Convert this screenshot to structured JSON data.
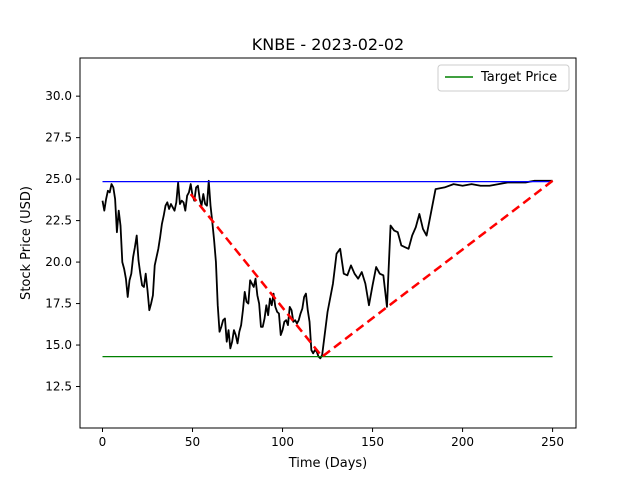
{
  "chart_data": {
    "type": "line",
    "title": "KNBE - 2023-02-02",
    "xlabel": "Time (Days)",
    "ylabel": "Stock Price (USD)",
    "xlim": [
      -12.5,
      263
    ],
    "ylim": [
      10.0,
      32.3
    ],
    "xticks": [
      0,
      50,
      100,
      150,
      200,
      250
    ],
    "yticks": [
      12.5,
      15.0,
      17.5,
      20.0,
      22.5,
      25.0,
      27.5,
      30.0
    ],
    "ytick_labels": [
      "12.5",
      "15.0",
      "17.5",
      "20.0",
      "22.5",
      "25.0",
      "27.5",
      "30.0"
    ],
    "grid": false,
    "legend": {
      "position": "top-right",
      "entries": [
        {
          "label": "Target Price",
          "color": "#008000"
        }
      ]
    },
    "series": [
      {
        "kind": "price",
        "color": "#000000",
        "x": [
          0,
          1,
          2,
          3,
          4,
          5,
          6,
          7,
          8,
          9,
          10,
          11,
          12,
          13,
          14,
          15,
          16,
          17,
          18,
          19,
          20,
          21,
          22,
          23,
          24,
          25,
          26,
          27,
          28,
          29,
          30,
          31,
          32,
          33,
          34,
          35,
          36,
          37,
          38,
          39,
          40,
          41,
          42,
          43,
          44,
          45,
          46,
          47,
          48,
          49,
          50,
          51,
          52,
          53,
          54,
          55,
          56,
          57,
          58,
          59,
          60,
          61,
          62,
          63,
          64,
          65,
          66,
          67,
          68,
          69,
          70,
          71,
          72,
          73,
          74,
          75,
          76,
          77,
          78,
          79,
          80,
          81,
          82,
          83,
          84,
          85,
          86,
          87,
          88,
          89,
          90,
          91,
          92,
          93,
          94,
          95,
          96,
          97,
          98,
          99,
          100,
          101,
          102,
          103,
          104,
          105,
          106,
          107,
          108,
          109,
          110,
          111,
          112,
          113,
          114,
          115,
          116,
          117,
          118,
          119,
          120,
          121,
          122,
          125,
          128,
          130,
          132,
          134,
          136,
          138,
          140,
          142,
          144,
          146,
          148,
          150,
          152,
          154,
          156,
          158,
          160,
          162,
          164,
          166,
          168,
          170,
          172,
          174,
          176,
          178,
          180,
          185,
          190,
          195,
          200,
          205,
          210,
          215,
          220,
          225,
          230,
          235,
          240,
          245,
          250
        ],
        "y": [
          23.7,
          23.1,
          23.8,
          24.3,
          24.2,
          24.7,
          24.5,
          23.8,
          21.8,
          23.1,
          22.2,
          20.0,
          19.6,
          19.0,
          17.9,
          18.9,
          19.3,
          20.3,
          20.9,
          21.6,
          20.1,
          19.3,
          18.6,
          18.5,
          19.3,
          18.3,
          17.1,
          17.5,
          18.0,
          19.8,
          20.3,
          20.8,
          21.5,
          22.3,
          22.8,
          23.4,
          23.6,
          23.2,
          23.5,
          23.3,
          23.1,
          23.6,
          24.8,
          23.5,
          23.7,
          23.6,
          23.1,
          24.0,
          24.2,
          24.7,
          24.0,
          23.7,
          24.5,
          24.6,
          23.8,
          23.4,
          24.1,
          23.5,
          23.4,
          24.9,
          23.4,
          22.4,
          21.3,
          20.0,
          17.4,
          15.8,
          16.1,
          16.5,
          16.6,
          15.2,
          15.9,
          14.8,
          15.2,
          15.9,
          15.6,
          15.1,
          15.8,
          16.2,
          17.1,
          18.2,
          17.6,
          17.5,
          18.9,
          18.7,
          18.5,
          19.0,
          18.0,
          17.5,
          16.1,
          16.1,
          16.6,
          17.4,
          16.8,
          17.8,
          17.4,
          18.1,
          17.3,
          17.0,
          16.9,
          15.6,
          15.9,
          16.4,
          16.5,
          16.2,
          17.3,
          17.1,
          16.4,
          16.5,
          16.3,
          16.5,
          16.9,
          17.2,
          17.9,
          18.1,
          17.1,
          16.4,
          14.7,
          14.5,
          14.7,
          14.6,
          14.3,
          14.2,
          14.4,
          17.0,
          18.7,
          20.5,
          20.8,
          19.3,
          19.2,
          19.8,
          19.3,
          19.0,
          19.4,
          18.7,
          17.4,
          18.6,
          19.7,
          19.3,
          19.2,
          17.3,
          22.2,
          21.9,
          21.8,
          21.0,
          20.9,
          20.8,
          21.6,
          22.1,
          22.9,
          22.0,
          21.6,
          24.4,
          24.5,
          24.7,
          24.6,
          24.7,
          24.6,
          24.6,
          24.7,
          24.8,
          24.8,
          24.8,
          24.9,
          24.9,
          24.9
        ]
      },
      {
        "kind": "upper",
        "color": "#0000ff",
        "x": [
          0,
          250
        ],
        "y": [
          24.85,
          24.85
        ]
      },
      {
        "name": "Target Price",
        "kind": "target",
        "color": "#008000",
        "x": [
          0,
          250
        ],
        "y": [
          14.3,
          14.3
        ]
      },
      {
        "kind": "path",
        "color": "#ff0000",
        "dashed": true,
        "x": [
          49,
          122,
          250
        ],
        "y": [
          24.1,
          14.3,
          24.9
        ]
      }
    ]
  }
}
